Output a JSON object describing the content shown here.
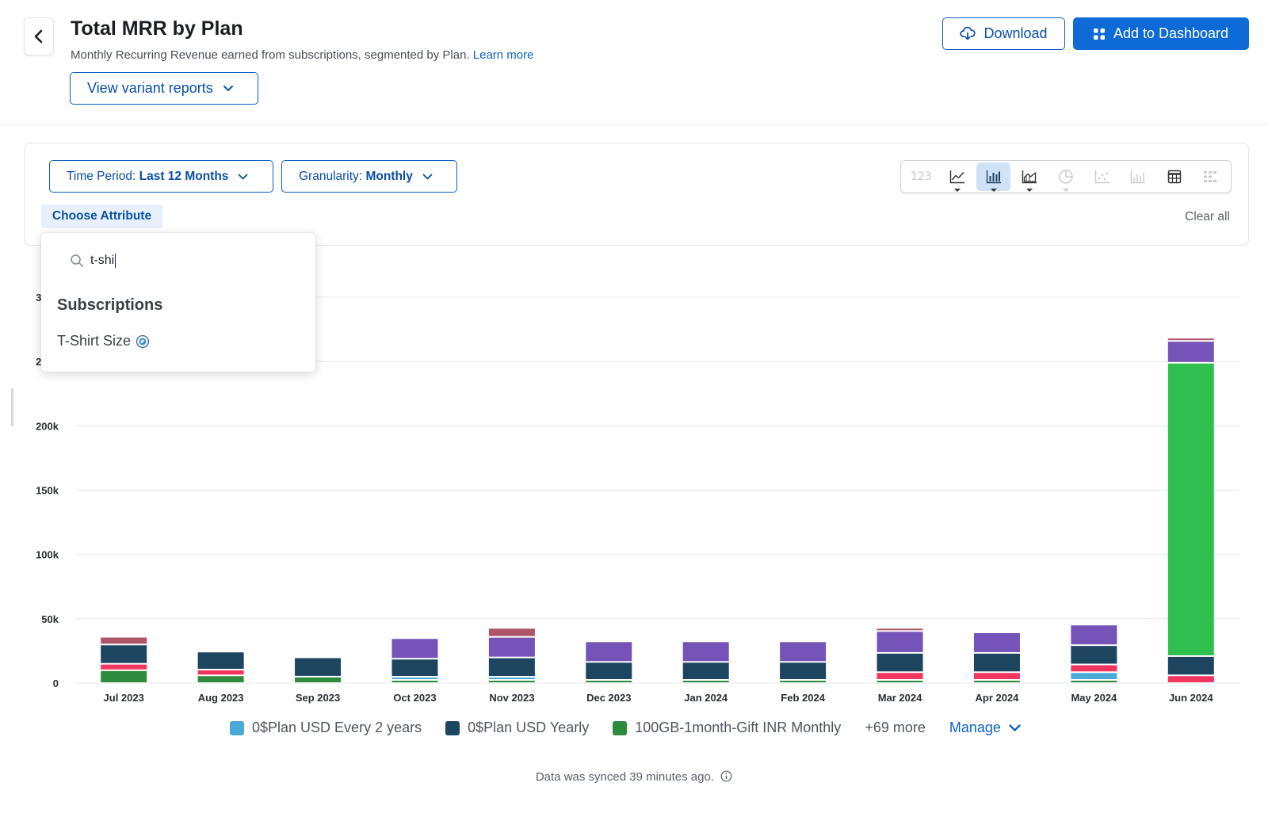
{
  "header": {
    "title": "Total MRR by Plan",
    "subtitle": "Monthly Recurring Revenue earned from subscriptions, segmented by Plan.",
    "learn_more": "Learn more",
    "variant_button": "View variant reports",
    "download_button": "Download",
    "add_dashboard_button": "Add to Dashboard"
  },
  "filters": {
    "time_period_label": "Time Period:",
    "time_period_value": "Last 12 Months",
    "granularity_label": "Granularity:",
    "granularity_value": "Monthly",
    "choose_attribute": "Choose Attribute",
    "clear_all": "Clear all"
  },
  "chart_types": {
    "number_label": "123",
    "active": "stacked-bar"
  },
  "dropdown": {
    "search_value": "t-shi",
    "section": "Subscriptions",
    "item": "T-Shirt Size"
  },
  "chart_data": {
    "type": "bar",
    "stacked": true,
    "categories": [
      "Jul 2023",
      "Aug 2023",
      "Sep 2023",
      "Oct 2023",
      "Nov 2023",
      "Dec 2023",
      "Jan 2024",
      "Feb 2024",
      "Mar 2024",
      "Apr 2024",
      "May 2024",
      "Jun 2024"
    ],
    "y_ticks": [
      "0",
      "50k",
      "100k",
      "150k",
      "200k",
      "250k",
      "300k"
    ],
    "y_tick_values": [
      0,
      50000,
      100000,
      150000,
      200000,
      250000,
      300000
    ],
    "ylim": [
      0,
      300000
    ],
    "series": [
      {
        "name": "100GB-1month-Gift INR Monthly",
        "color": "#2e8b3e",
        "values": [
          10000,
          6000,
          5000,
          1500,
          500,
          1500,
          1500,
          1500,
          2000,
          2000,
          1500,
          0
        ]
      },
      {
        "name": "0$Plan USD Every 2 years",
        "color": "#4ba9d8",
        "values": [
          0,
          0,
          0,
          1000,
          1000,
          0,
          0,
          0,
          0,
          0,
          6000,
          0
        ]
      },
      {
        "name": "",
        "color": "#f2355f",
        "values": [
          5000,
          4500,
          0,
          0,
          0,
          0,
          0,
          0,
          6000,
          6000,
          6000,
          6000
        ]
      },
      {
        "name": "0$Plan USD Yearly",
        "color": "#1d4560",
        "values": [
          15000,
          14000,
          15000,
          14000,
          15000,
          14000,
          14000,
          14000,
          15000,
          15000,
          15000,
          15000
        ]
      },
      {
        "name": "",
        "color": "#2fbf4f",
        "values": [
          0,
          0,
          0,
          0,
          0,
          0,
          0,
          0,
          0,
          0,
          0,
          228000
        ]
      },
      {
        "name": "",
        "color": "#7553b8",
        "values": [
          0,
          0,
          0,
          16000,
          16000,
          16000,
          16000,
          16000,
          17000,
          16000,
          16000,
          17000
        ]
      },
      {
        "name": "",
        "color": "#b0546a",
        "values": [
          6000,
          0,
          0,
          0,
          7000,
          0,
          0,
          0,
          1000,
          0,
          0,
          1000
        ]
      }
    ]
  },
  "legend": {
    "items": [
      {
        "label": "0$Plan USD Every 2 years",
        "color": "#4ba9d8"
      },
      {
        "label": "0$Plan USD Yearly",
        "color": "#1d4560"
      },
      {
        "label": "100GB-1month-Gift INR Monthly",
        "color": "#2e8b3e"
      }
    ],
    "more": "+69 more",
    "manage": "Manage"
  },
  "footer": {
    "sync_text": "Data was synced 39 minutes ago."
  }
}
